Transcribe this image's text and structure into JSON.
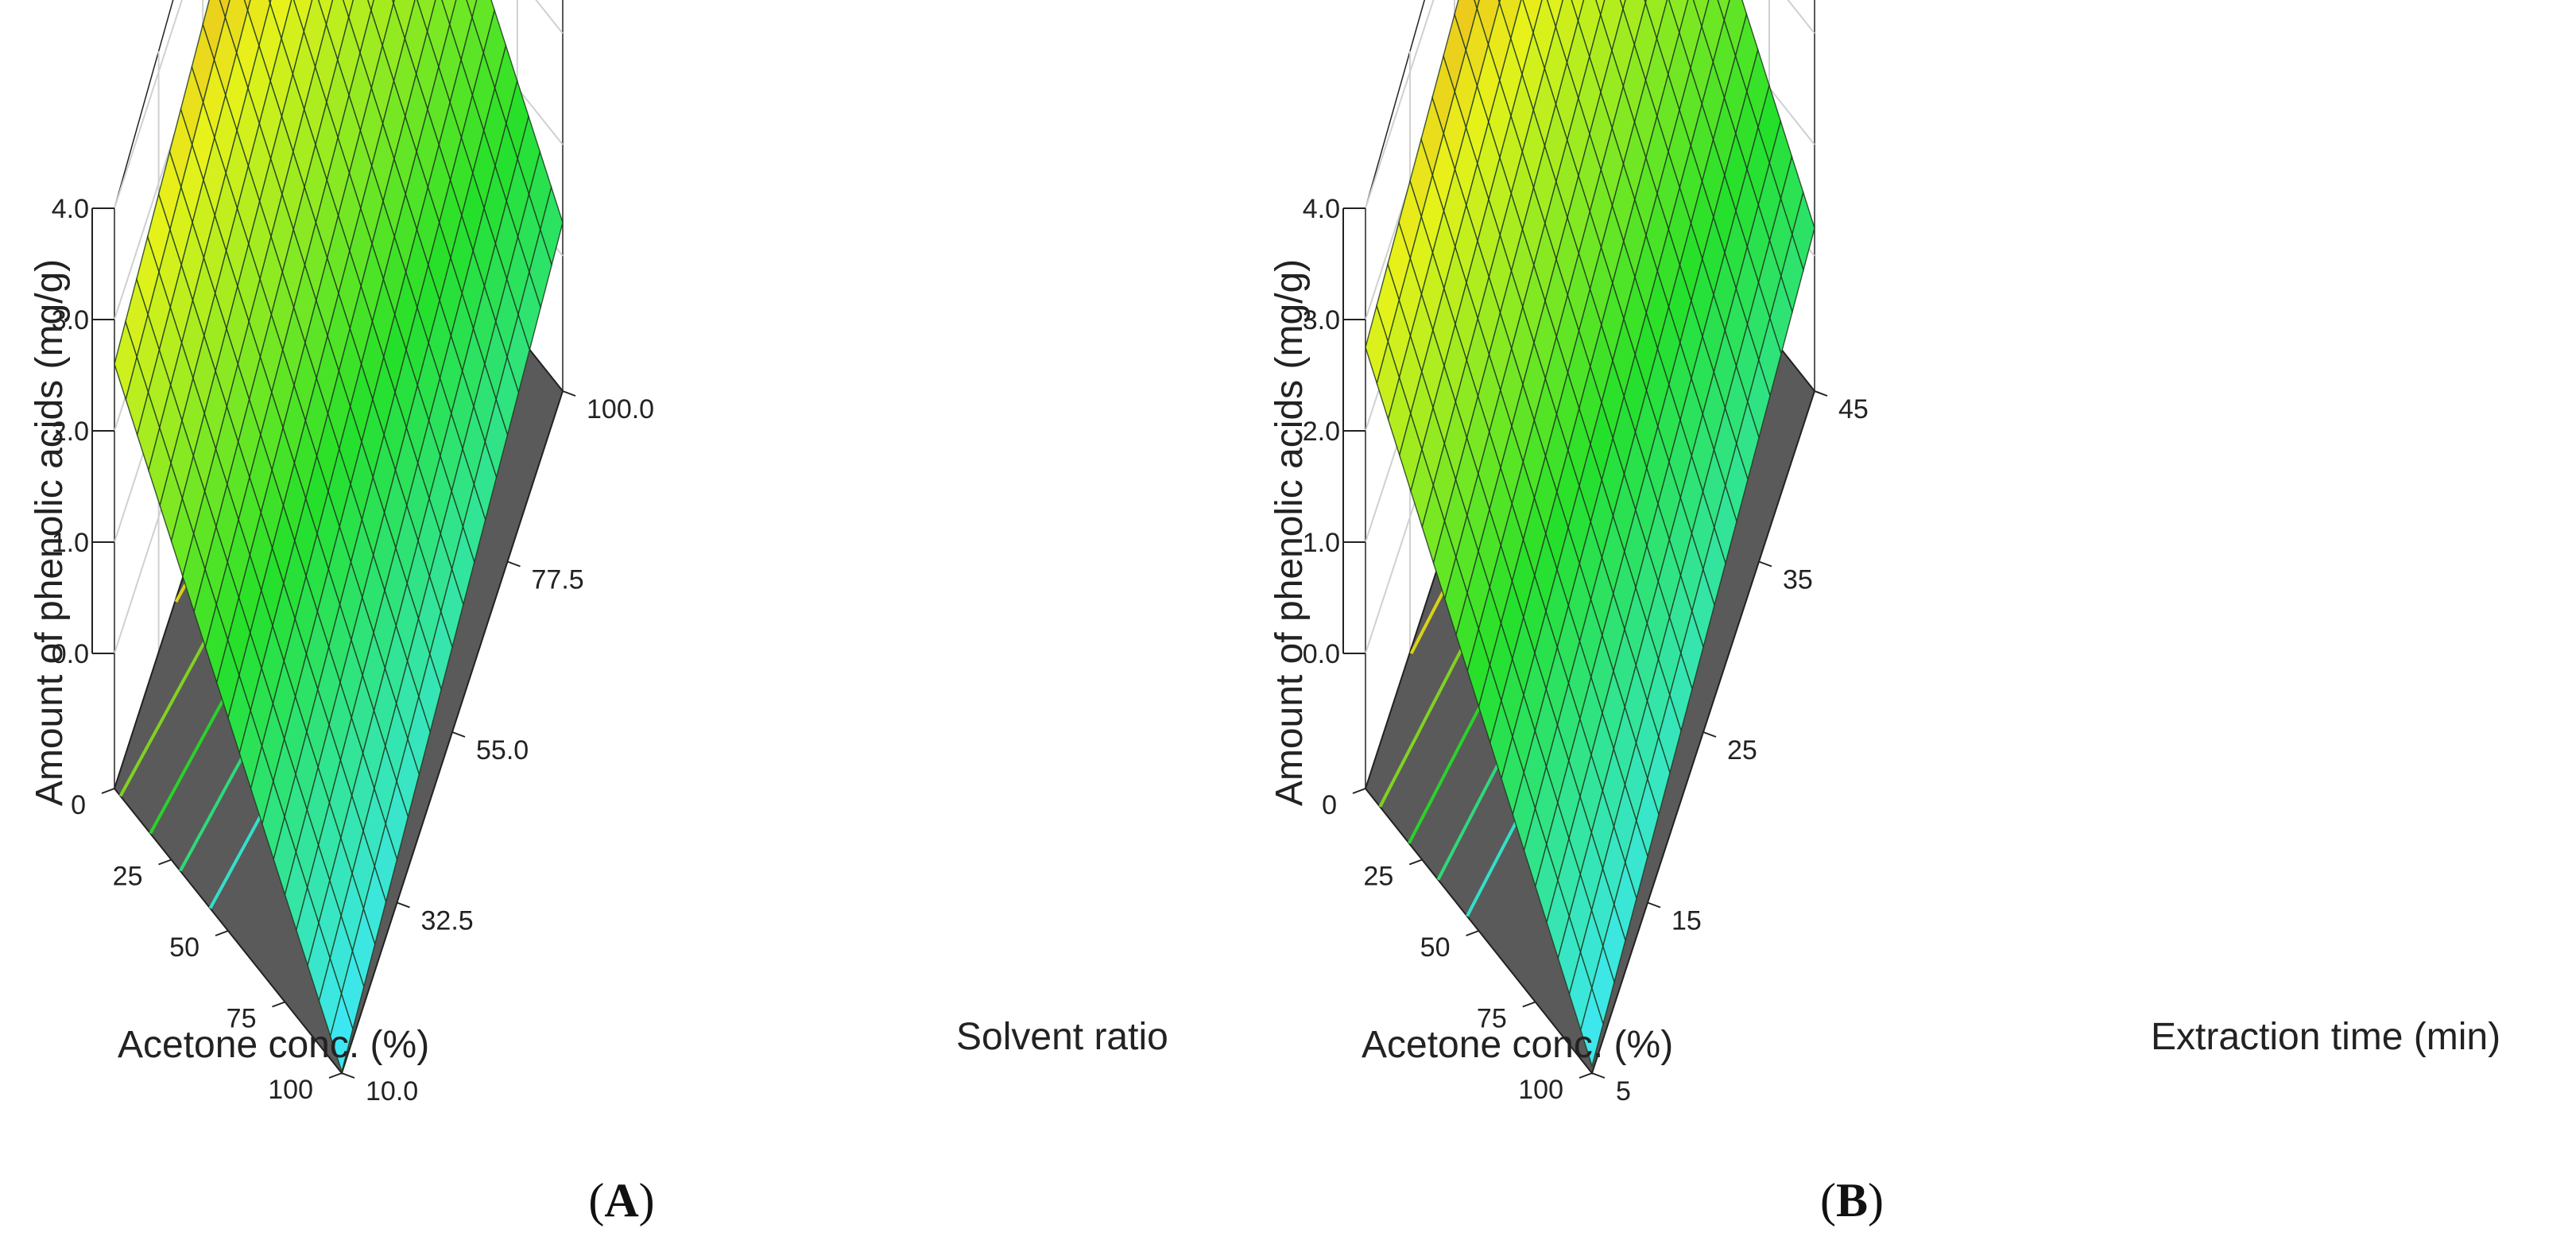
{
  "figure": {
    "panels": [
      {
        "id": "A",
        "label_open": "(",
        "label_letter": "A",
        "label_close": ")"
      },
      {
        "id": "B",
        "label_open": "(",
        "label_letter": "B",
        "label_close": ")"
      }
    ]
  },
  "colors": {
    "floor": "#5a5a5a",
    "grid": "#d0d0d0",
    "mesh_line": "#1e3a1e",
    "surface_low": "#3fe8ff",
    "surface_mid": "#25e02a",
    "surface_upper": "#e8f21a",
    "surface_high": "#f37a24"
  },
  "chart_data": [
    {
      "type": "surface",
      "panel": "A",
      "zlabel": "Amount of phenolic acids (mg/g)",
      "xlabel": "Acetone conc. (%)",
      "ylabel": "Solvent ratio",
      "x_ticks": [
        "0",
        "25",
        "50",
        "75",
        "100"
      ],
      "y_ticks": [
        "10.0",
        "32.5",
        "55.0",
        "77.5",
        "100.0"
      ],
      "z_ticks": [
        "0.0",
        "1.0",
        "2.0",
        "3.0",
        "4.0"
      ],
      "xlim": [
        0,
        100
      ],
      "ylim": [
        10,
        100
      ],
      "zlim": [
        0,
        4
      ],
      "surface_corners": {
        "acetone_0_ratio_10": 2.6,
        "acetone_0_ratio_100": 4.1,
        "acetone_100_ratio_10": -1.2,
        "acetone_100_ratio_100": 0.3
      },
      "contour_levels": [
        3.5,
        3.0,
        2.5,
        2.0,
        1.5,
        1.0
      ],
      "grid_divisions": 20
    },
    {
      "type": "surface",
      "panel": "B",
      "zlabel": "Amount of phenolic acids (mg/g)",
      "xlabel": "Acetone conc. (%)",
      "ylabel": "Extraction time (min)",
      "x_ticks": [
        "0",
        "25",
        "50",
        "75",
        "100"
      ],
      "y_ticks": [
        "5",
        "15",
        "25",
        "35",
        "45"
      ],
      "z_ticks": [
        "0.0",
        "1.0",
        "2.0",
        "3.0",
        "4.0"
      ],
      "xlim": [
        0,
        100
      ],
      "ylim": [
        5,
        45
      ],
      "zlim": [
        0,
        4
      ],
      "surface_corners": {
        "acetone_0_time_5": 2.75,
        "acetone_0_time_45": 4.1,
        "acetone_100_time_5": -1.15,
        "acetone_100_time_45": 0.25
      },
      "contour_levels": [
        3.5,
        3.0,
        2.5,
        2.0,
        1.5,
        1.0
      ],
      "grid_divisions": 20
    }
  ]
}
